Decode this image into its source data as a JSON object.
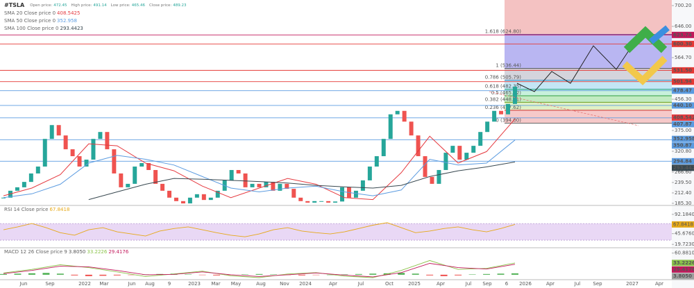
{
  "chart_data": {
    "type": "candlestick",
    "symbol": "#TSLA",
    "quote": [
      {
        "label": "Open price:",
        "value": 472.45
      },
      {
        "label": "High price:",
        "value": 491.14
      },
      {
        "label": "Low price:",
        "value": 465.46
      },
      {
        "label": "Close price:",
        "value": 489.23
      }
    ],
    "up_color": "#26a69a",
    "down_color": "#ef5350",
    "closes": [
      200,
      218,
      227,
      241,
      263,
      281,
      353,
      389,
      362,
      326,
      308,
      281,
      299,
      353,
      371,
      326,
      263,
      227,
      236,
      281,
      290,
      272,
      236,
      218,
      200,
      191,
      185,
      200,
      209,
      194,
      200,
      218,
      245,
      272,
      263,
      227,
      236,
      227,
      241,
      218,
      236,
      223,
      200,
      191,
      187,
      191,
      191,
      187,
      190,
      227,
      200,
      218,
      245,
      281,
      308,
      353,
      417,
      426,
      398,
      362,
      308,
      254,
      236,
      272,
      317,
      335,
      299,
      317,
      335,
      371,
      398,
      426,
      417,
      444,
      489.23
    ],
    "ylim": [
      181.6,
      714.7
    ],
    "yticks": [
      {
        "value": 700.2,
        "label": "700.20"
      },
      {
        "value": 646,
        "label": "646.00"
      },
      {
        "value": 564.7,
        "label": "564.70"
      },
      {
        "value": 456.3,
        "label": "456.30"
      },
      {
        "value": 375,
        "label": "375.00"
      },
      {
        "value": 320.8,
        "label": "320.80"
      },
      {
        "value": 266.6,
        "label": "266.60"
      },
      {
        "value": 239.5,
        "label": "239.50"
      },
      {
        "value": 212.4,
        "label": "212.40"
      },
      {
        "value": 185.3,
        "label": "185.30"
      }
    ],
    "moving_averages": [
      {
        "name": "SMA 20 Close price 0",
        "value": 408.5425,
        "color": "#e5393f",
        "values": [
          205,
          225,
          260,
          340,
          335,
          290,
          270,
          230,
          200,
          225,
          250,
          235,
          200,
          195,
          265,
          360,
          290,
          320,
          405
        ]
      },
      {
        "name": "SMA 50 Close price 0",
        "value": 352.958,
        "color": "#5b9be0",
        "values": [
          200,
          210,
          235,
          290,
          310,
          300,
          285,
          255,
          225,
          215,
          225,
          230,
          215,
          205,
          220,
          300,
          285,
          290,
          350
        ]
      },
      {
        "name": "SMA 100 Close price 0",
        "value": 293.4423,
        "color": "#37474f",
        "values": [
          null,
          null,
          null,
          195,
          215,
          235,
          250,
          248,
          245,
          242,
          238,
          232,
          228,
          225,
          232,
          255,
          270,
          280,
          293
        ]
      }
    ],
    "levels": [
      {
        "value": 623.74,
        "label": "623.74",
        "color": "#c2185b"
      },
      {
        "value": 600.3,
        "label": "600.30",
        "color": "#e53935"
      },
      {
        "value": 531.5,
        "label": "531.50",
        "color": "#e53935"
      },
      {
        "value": 501.94,
        "label": "501.94",
        "color": "#e53935"
      },
      {
        "value": 478.47,
        "label": "478.47",
        "color": "#5b9be0"
      },
      {
        "value": 440.1,
        "label": "440.10",
        "color": "#5b9be0"
      },
      {
        "value": 407.87,
        "label": "407.87",
        "color": "#5b9be0"
      },
      {
        "value": 350.87,
        "label": "350.87",
        "color": "#5b9be0"
      },
      {
        "value": 294.84,
        "label": "294.84",
        "color": "#5b9be0"
      }
    ],
    "fibonacci": {
      "top_fill": "#f4c2c2",
      "levels": [
        {
          "value": 624.8,
          "label": "1.618 (624.80)",
          "color": "#4a2f8f",
          "fill": "#b9b6f2"
        },
        {
          "value": 536.44,
          "label": "1 (536.44)",
          "color": "#555555",
          "fill": "#d4d4dc"
        },
        {
          "value": 505.79,
          "label": "0.786 (505.79)",
          "color": "#2b8cc4",
          "fill": "#c4e6f5"
        },
        {
          "value": 482.35,
          "label": "0.618 (482.35)",
          "color": "#1f9e89",
          "fill": "#c8f0dc"
        },
        {
          "value": 465.22,
          "label": "0.5 (465.22)",
          "color": "#2e9e3e",
          "fill": "#c2ebc2"
        },
        {
          "value": 448.41,
          "label": "0.382 (448.41)",
          "color": "#6a9e1f",
          "fill": "#dff0c6"
        },
        {
          "value": 427.62,
          "label": "0.236 (427.62)",
          "color": "#d32f2f",
          "fill": "#f6c9c9"
        },
        {
          "value": 394,
          "label": "0 (394.00)",
          "color": "#666666"
        }
      ]
    },
    "xlabels": [
      "Jun",
      "Sep",
      "2022",
      "Mar",
      "Jun",
      "Aug",
      "9",
      "2023",
      "Mar",
      "May",
      "Aug",
      "Nov",
      "2024",
      "Apr",
      "Jul",
      "Oct",
      "2025",
      "Apr",
      "Jul",
      "Sep",
      "6",
      "2026",
      "Apr",
      "Jul",
      "Sep",
      "2027",
      "Apr"
    ],
    "rsi": {
      "name": "RSI 14 Close price",
      "value": 67.8418,
      "color": "#e6a817",
      "band_fill": "#e9d8f5",
      "band": [
        30,
        70
      ],
      "values": [
        55,
        62,
        70,
        60,
        48,
        42,
        55,
        60,
        50,
        45,
        40,
        52,
        58,
        62,
        55,
        48,
        42,
        38,
        45,
        55,
        60,
        52,
        48,
        45,
        50,
        58,
        66,
        72,
        60,
        48,
        52,
        58,
        62,
        55,
        50,
        58,
        67.8418
      ],
      "ylim": [
        15,
        112
      ],
      "yticks": [
        {
          "value": 92.184,
          "label": "92.1840"
        },
        {
          "value": 45.676,
          "label": "45.6760"
        },
        {
          "value": 19.723,
          "label": "19.7230"
        }
      ]
    },
    "macd": {
      "name": "MACD 12 26 Close price 9",
      "histogram": {
        "value": 3.805,
        "label": "3.8050",
        "color": "#4caf50",
        "values": [
          2,
          3,
          4,
          5,
          3,
          -2,
          -4,
          -3,
          -2,
          -1,
          1,
          2,
          3,
          1,
          -1,
          -2,
          -1,
          1,
          2,
          1,
          -1,
          -2,
          -1,
          0,
          1,
          2,
          3,
          4,
          5,
          3,
          -2,
          -4,
          -2,
          1,
          2,
          3,
          3.805
        ]
      },
      "macd_line": {
        "value": 33.2226,
        "label": "33.2226",
        "color": "#8bc34a",
        "values": [
          5,
          15,
          28,
          20,
          8,
          -5,
          2,
          10,
          -3,
          -8,
          2,
          6,
          -4,
          -8,
          12,
          40,
          15,
          18,
          33.2226
        ]
      },
      "signal_line": {
        "value": 29.4176,
        "label": "29.4176",
        "color": "#c2185b",
        "values": [
          3,
          12,
          24,
          22,
          12,
          0,
          1,
          8,
          0,
          -5,
          0,
          5,
          -1,
          -6,
          6,
          32,
          20,
          16,
          29.4176
        ]
      },
      "ylim": [
        -12,
        74
      ],
      "yticks": [
        {
          "value": 60.881,
          "label": "60.8810"
        }
      ]
    }
  }
}
